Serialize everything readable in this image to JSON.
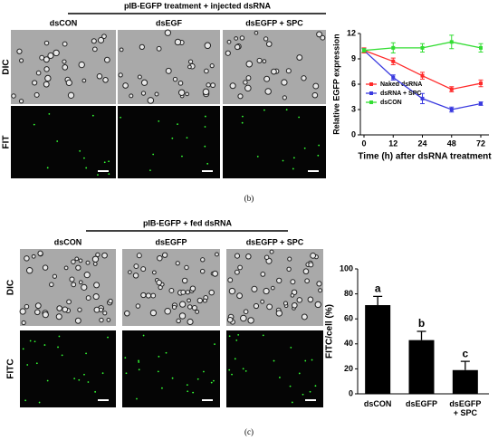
{
  "panel_b": {
    "label": "(b)",
    "header": "pIB-EGFP treatment + injected dsRNA",
    "columns": [
      "dsCON",
      "dsEGF",
      "dsEGFP + SPC"
    ],
    "rows": [
      "DIC",
      "FIT"
    ]
  },
  "panel_c": {
    "label": "(c)",
    "header": "pIB-EGFP + fed dsRNA",
    "columns": [
      "dsCON",
      "dsEGFP",
      "dsEGFP + SPC"
    ],
    "rows": [
      "DIC",
      "FITC"
    ]
  },
  "chart_data": [
    {
      "type": "line",
      "x_label": "Time (h) after dsRNA treatment",
      "y_label": "Relative EGFP expression",
      "categories": [
        "0",
        "12",
        "24",
        "48",
        "72"
      ],
      "ylim": [
        0,
        12
      ],
      "yticks": [
        0,
        3,
        6,
        9,
        12
      ],
      "legend": "left",
      "series": [
        {
          "name": "Naked dsRNA",
          "color": "#ff2a2a",
          "values": [
            10,
            8.7,
            7,
            5.4,
            6.1
          ],
          "errors": [
            0.3,
            0.4,
            0.4,
            0.3,
            0.4
          ]
        },
        {
          "name": "dsRNA + SPC",
          "color": "#3a3adf",
          "values": [
            10,
            6.8,
            4.3,
            3.0,
            3.7
          ],
          "errors": [
            0.2,
            0.3,
            0.6,
            0.3,
            0.2
          ]
        },
        {
          "name": "dsCON",
          "color": "#33dd33",
          "values": [
            10,
            10.3,
            10.3,
            11.0,
            10.3
          ],
          "errors": [
            0.2,
            0.6,
            0.5,
            0.8,
            0.5
          ]
        }
      ]
    },
    {
      "type": "bar",
      "y_label": "FITC/cell (%)",
      "categories": [
        "dsCON",
        "dsEGFP",
        "dsEGFP + SPC"
      ],
      "values": [
        71,
        43,
        19
      ],
      "errors": [
        7,
        7,
        7
      ],
      "annotations": [
        "a",
        "b",
        "c"
      ],
      "color": "#000000",
      "ylim": [
        0,
        100
      ],
      "yticks": [
        0,
        20,
        40,
        60,
        80,
        100
      ]
    }
  ]
}
